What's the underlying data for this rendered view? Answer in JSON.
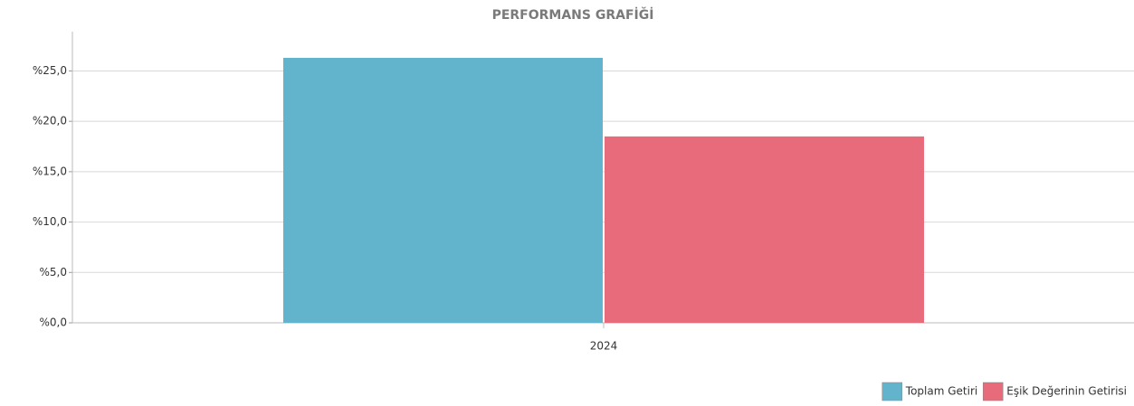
{
  "chart_data": {
    "type": "bar",
    "title": "PERFORMANS GRAFİĞİ",
    "categories": [
      "2024"
    ],
    "series": [
      {
        "name": "Toplam Getiri",
        "color": "#62b4cc",
        "values": [
          26.3
        ]
      },
      {
        "name": "Eşik Değerinin Getirisi",
        "color": "#e76b7b",
        "values": [
          18.5
        ]
      }
    ],
    "ylim": [
      0,
      28.9
    ],
    "yticks": [
      {
        "value": 0,
        "label": "%0,0"
      },
      {
        "value": 5,
        "label": "%5,0"
      },
      {
        "value": 10,
        "label": "%10,0"
      },
      {
        "value": 15,
        "label": "%15,0"
      },
      {
        "value": 20,
        "label": "%20,0"
      },
      {
        "value": 25,
        "label": "%25,0"
      }
    ],
    "grid": true,
    "legend": "bottom-right"
  }
}
